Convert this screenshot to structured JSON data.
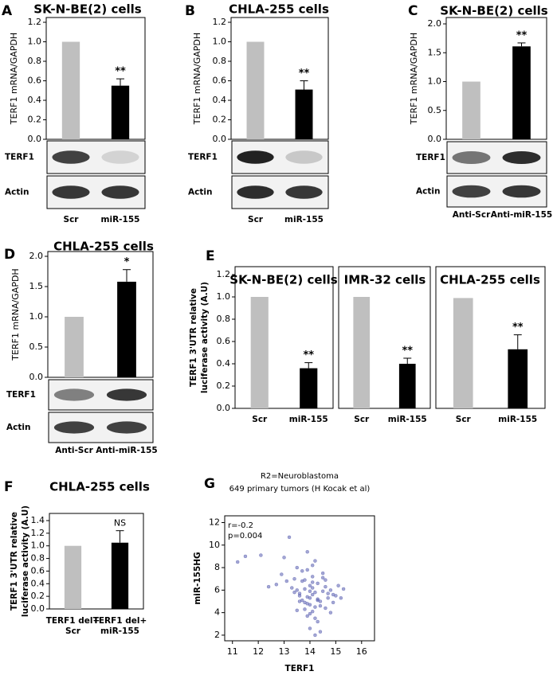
{
  "chart_data": [
    {
      "type": "bar",
      "panel": "A",
      "title": "SK-N-BE(2) cells",
      "y_label": [
        "TERF1 mRNA/GAPDH"
      ],
      "categories": [
        "Scr",
        "miR-155"
      ],
      "values": [
        1.0,
        0.55
      ],
      "errors": [
        0,
        0.07
      ],
      "significance": [
        null,
        "**"
      ],
      "colors": [
        "#bfbfbf",
        "#000000"
      ],
      "ylim": [
        0,
        1.2
      ],
      "yticks": [
        {
          "value": 0,
          "label": "0.0"
        },
        0.2,
        0.4,
        0.6,
        0.8,
        {
          "value": 1,
          "label": "1.0"
        },
        1.2
      ],
      "blot_labels": [
        "TERF1",
        "Actin"
      ]
    },
    {
      "type": "bar",
      "panel": "B",
      "title": "CHLA-255 cells",
      "y_label": [
        "TERF1 mRNA/GAPDH"
      ],
      "categories": [
        "Scr",
        "miR-155"
      ],
      "values": [
        1.0,
        0.51
      ],
      "errors": [
        0,
        0.09
      ],
      "significance": [
        null,
        "**"
      ],
      "colors": [
        "#bfbfbf",
        "#000000"
      ],
      "ylim": [
        0,
        1.2
      ],
      "yticks": [
        {
          "value": 0,
          "label": "0.0"
        },
        0.2,
        0.4,
        0.6,
        0.8,
        {
          "value": 1,
          "label": "1.0"
        },
        1.2
      ],
      "blot_labels": [
        "TERF1",
        "Actin"
      ]
    },
    {
      "type": "bar",
      "panel": "C",
      "title": "SK-N-BE(2) cells",
      "y_label": [
        "TERF1 mRNA/GAPDH"
      ],
      "categories": [
        "Anti-Scr",
        "Anti-miR-155"
      ],
      "values": [
        1.0,
        1.61
      ],
      "errors": [
        0,
        0.06
      ],
      "significance": [
        null,
        "**"
      ],
      "colors": [
        "#bfbfbf",
        "#000000"
      ],
      "ylim": [
        0,
        2
      ],
      "yticks": [
        {
          "value": 0,
          "label": "0.0"
        },
        0.5,
        {
          "value": 1,
          "label": "1.0"
        },
        1.5,
        {
          "value": 2,
          "label": "2.0"
        }
      ],
      "blot_labels": [
        "TERF1",
        "Actin"
      ]
    },
    {
      "type": "bar",
      "panel": "D",
      "title": "CHLA-255 cells",
      "y_label": [
        "TERF1 mRNA/GAPDH"
      ],
      "categories": [
        "Anti-Scr",
        "Anti-miR-155"
      ],
      "values": [
        1.0,
        1.58
      ],
      "errors": [
        0,
        0.2
      ],
      "significance": [
        null,
        "*"
      ],
      "colors": [
        "#bfbfbf",
        "#000000"
      ],
      "ylim": [
        0,
        2
      ],
      "yticks": [
        {
          "value": 0,
          "label": "0.0"
        },
        0.5,
        {
          "value": 1,
          "label": "1.0"
        },
        1.5,
        {
          "value": 2,
          "label": "2.0"
        }
      ],
      "blot_labels": [
        "TERF1",
        "Actin"
      ]
    },
    {
      "type": "bar",
      "panel": "E",
      "title": "SK-N-BE(2) cells",
      "y_label": [
        "TERF1 3'UTR relative",
        "luciferase activity (A.U)"
      ],
      "categories": [
        "Scr",
        "miR-155"
      ],
      "values": [
        1.0,
        0.36
      ],
      "errors": [
        0,
        0.05
      ],
      "significance": [
        null,
        "**"
      ],
      "colors": [
        "#bfbfbf",
        "#000000"
      ],
      "ylim": [
        0,
        1.2
      ],
      "yticks": [
        {
          "value": 0,
          "label": "0.0"
        },
        0.2,
        0.4,
        0.6,
        0.8,
        {
          "value": 1,
          "label": "1.0"
        },
        1.2
      ]
    },
    {
      "type": "bar",
      "title": "IMR-32 cells",
      "categories": [
        "Scr",
        "miR-155"
      ],
      "values": [
        1.0,
        0.4
      ],
      "errors": [
        0,
        0.05
      ],
      "significance": [
        null,
        "**"
      ],
      "colors": [
        "#bfbfbf",
        "#000000"
      ],
      "ylim": [
        0,
        1.2
      ]
    },
    {
      "type": "bar",
      "title": "CHLA-255 cells",
      "categories": [
        "Scr",
        "miR-155"
      ],
      "values": [
        0.99,
        0.53
      ],
      "errors": [
        0,
        0.13
      ],
      "significance": [
        null,
        "**"
      ],
      "colors": [
        "#bfbfbf",
        "#000000"
      ],
      "ylim": [
        0,
        1.2
      ]
    },
    {
      "type": "bar",
      "panel": "F",
      "title": "CHLA-255 cells",
      "y_label": [
        "TERF1 3'UTR relative",
        "luciferase activity (A.U)"
      ],
      "categories": [
        [
          "TERF1 del+",
          "Scr"
        ],
        [
          "TERF1 del+",
          "miR-155"
        ]
      ],
      "values": [
        1.0,
        1.05
      ],
      "errors": [
        0,
        0.19
      ],
      "significance": [
        null,
        "NS"
      ],
      "colors": [
        "#bfbfbf",
        "#000000"
      ],
      "ylim": [
        0,
        1.4
      ],
      "yticks": [
        {
          "value": 0,
          "label": "0.0"
        },
        0.2,
        0.4,
        0.6,
        0.8,
        {
          "value": 1,
          "label": "1.0"
        },
        1.2,
        1.4
      ]
    },
    {
      "type": "scatter",
      "panel": "G",
      "title": [
        "R2=Neuroblastoma",
        "649 primary tumors (H Kocak et al)"
      ],
      "x_label": "TERF1",
      "y_label": [
        "miR-155HG"
      ],
      "annotations": [
        "r=-0.2",
        "p=0.004"
      ],
      "color": "#5a5fb0",
      "xlim": [
        10.7,
        16.5
      ],
      "ylim": [
        1.5,
        12.6
      ],
      "xticks": [
        11,
        12,
        13,
        14,
        15,
        16
      ],
      "yticks": [
        2,
        4,
        6,
        8,
        10,
        12
      ],
      "x": [
        14.1,
        13.8,
        14.3,
        13.9,
        14.5,
        14.0,
        13.6,
        14.2,
        14.7,
        13.7,
        14.4,
        14.1,
        13.5,
        14.9,
        14.0,
        13.9,
        14.6,
        14.2,
        13.8,
        14.3,
        15.0,
        13.4,
        14.1,
        14.8,
        13.7,
        14.5,
        14.0,
        13.9,
        14.2,
        14.4,
        15.2,
        13.3,
        14.6,
        13.6,
        14.1,
        14.3,
        13.8,
        14.7,
        14.0,
        15.3,
        11.2,
        11.5,
        12.7,
        13.1,
        12.9,
        13.2,
        12.4,
        13.0,
        13.5,
        13.9,
        14.2,
        14.4,
        13.7,
        14.1,
        14.0,
        14.8,
        15.1,
        13.6,
        14.3,
        14.5,
        13.9,
        14.2,
        12.1,
        13.4,
        14.6,
        14.0,
        13.8,
        14.9,
        14.1,
        13.5
      ],
      "values": [
        5.6,
        6.1,
        5.2,
        4.8,
        5.9,
        6.4,
        5.7,
        4.5,
        5.3,
        6.8,
        5.0,
        7.2,
        6.0,
        4.9,
        3.9,
        5.4,
        6.3,
        5.8,
        4.3,
        6.6,
        5.5,
        7.0,
        4.1,
        6.0,
        5.1,
        7.5,
        5.9,
        7.8,
        3.5,
        4.6,
        5.3,
        6.2,
        4.4,
        5.0,
        8.2,
        3.2,
        6.9,
        5.7,
        2.6,
        6.1,
        8.5,
        9.0,
        6.5,
        6.8,
        7.4,
        10.7,
        6.3,
        8.9,
        8.0,
        9.4,
        2.0,
        2.3,
        7.7,
        6.7,
        4.7,
        4.0,
        6.4,
        5.5,
        5.1,
        7.1,
        3.7,
        8.6,
        9.1,
        5.8,
        6.9,
        5.3,
        4.9,
        5.6,
        6.2,
        4.2
      ]
    }
  ]
}
